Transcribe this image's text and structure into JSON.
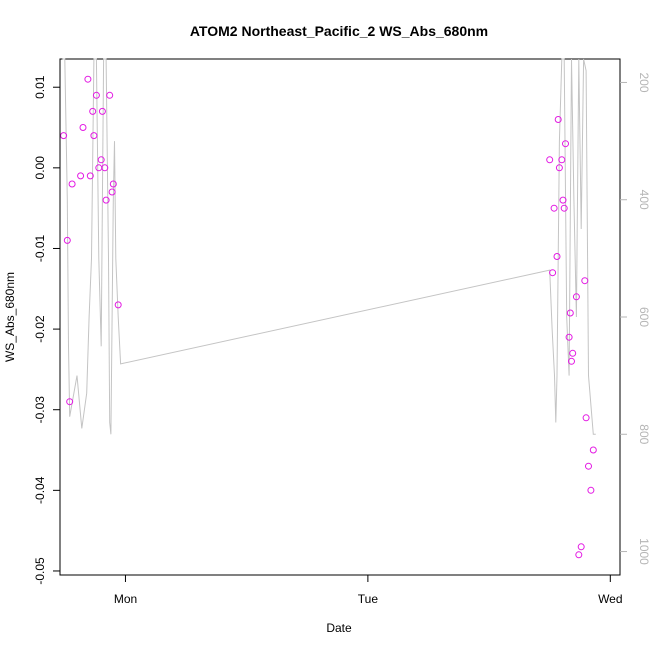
{
  "chart_data": {
    "type": "scatter",
    "title": "ATOM2 Northeast_Pacific_2 WS_Abs_680nm",
    "xlabel": "Date",
    "ylabel": "WS_Abs_680nm",
    "xlim": [
      -0.27,
      2.04
    ],
    "ylim": [
      -0.0505,
      0.0135
    ],
    "x_ticks": [
      {
        "value": 0,
        "label": "Mon"
      },
      {
        "value": 1,
        "label": "Tue"
      },
      {
        "value": 2,
        "label": "Wed"
      }
    ],
    "y_ticks": [
      {
        "value": 0.01,
        "label": "0.01"
      },
      {
        "value": 0.0,
        "label": "0.00"
      },
      {
        "value": -0.01,
        "label": "-0.01"
      },
      {
        "value": -0.02,
        "label": "-0.02"
      },
      {
        "value": -0.03,
        "label": "-0.03"
      },
      {
        "value": -0.04,
        "label": "-0.04"
      },
      {
        "value": -0.05,
        "label": "-0.05"
      }
    ],
    "y2lim": [
      1040,
      160
    ],
    "y2_ticks": [
      {
        "value": 200,
        "label": "200"
      },
      {
        "value": 400,
        "label": "400"
      },
      {
        "value": 600,
        "label": "600"
      },
      {
        "value": 800,
        "label": "800"
      },
      {
        "value": 1000,
        "label": "1000"
      }
    ],
    "point_color": "#e31ae3",
    "line_color": "#c4c4c4",
    "grid": false,
    "legend": "none",
    "series": [
      {
        "type": "points",
        "x": [
          -0.255,
          -0.24,
          -0.23,
          -0.22,
          -0.185,
          -0.175,
          -0.155,
          -0.145,
          -0.135,
          -0.13,
          -0.12,
          -0.11,
          -0.1,
          -0.095,
          -0.085,
          -0.08,
          -0.065,
          -0.055,
          -0.05,
          -0.03,
          1.75,
          1.762,
          1.768,
          1.78,
          1.785,
          1.79,
          1.8,
          1.805,
          1.81,
          1.815,
          1.83,
          1.835,
          1.84,
          1.845,
          1.86,
          1.87,
          1.88,
          1.895,
          1.9,
          1.91,
          1.92,
          1.93
        ],
        "y": [
          0.004,
          -0.009,
          -0.029,
          -0.002,
          -0.001,
          0.005,
          0.011,
          -0.001,
          0.007,
          0.004,
          0.009,
          0.0,
          0.001,
          0.007,
          0.0,
          -0.004,
          0.009,
          -0.003,
          -0.002,
          -0.017,
          0.001,
          -0.013,
          -0.005,
          -0.011,
          0.006,
          -0.0,
          0.001,
          -0.004,
          -0.005,
          0.003,
          -0.021,
          -0.018,
          -0.024,
          -0.023,
          -0.016,
          -0.048,
          -0.047,
          -0.014,
          -0.031,
          -0.037,
          -0.04,
          -0.035
        ]
      },
      {
        "type": "line",
        "axis": "right",
        "x": [
          -0.26,
          -0.25,
          -0.24,
          -0.235,
          -0.23,
          -0.2,
          -0.18,
          -0.16,
          -0.15,
          -0.14,
          -0.13,
          -0.12,
          -0.11,
          -0.1,
          -0.095,
          -0.09,
          -0.08,
          -0.07,
          -0.065,
          -0.06,
          -0.05,
          -0.045,
          -0.04,
          -0.03,
          -0.02,
          1.75,
          1.76,
          1.77,
          1.775,
          1.78,
          1.79,
          1.8,
          1.81,
          1.82,
          1.83,
          1.84,
          1.85,
          1.86,
          1.87,
          1.88,
          1.89,
          1.9,
          1.91,
          1.93,
          1.94
        ],
        "y": [
          160,
          160,
          400,
          650,
          770,
          700,
          790,
          730,
          600,
          500,
          160,
          160,
          500,
          650,
          400,
          160,
          160,
          500,
          780,
          800,
          400,
          300,
          500,
          600,
          680,
          520,
          620,
          700,
          780,
          700,
          300,
          160,
          160,
          600,
          700,
          160,
          400,
          600,
          160,
          450,
          160,
          180,
          700,
          800,
          800
        ]
      }
    ]
  }
}
